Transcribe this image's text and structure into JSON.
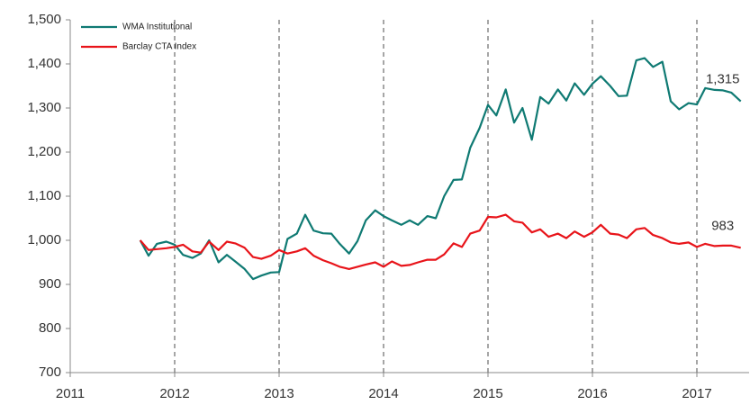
{
  "chart_data": {
    "type": "line",
    "x": [
      2011.67,
      2011.75,
      2011.83,
      2011.92,
      2012.0,
      2012.08,
      2012.17,
      2012.25,
      2012.33,
      2012.42,
      2012.5,
      2012.58,
      2012.67,
      2012.75,
      2012.83,
      2012.92,
      2013.0,
      2013.08,
      2013.17,
      2013.25,
      2013.33,
      2013.42,
      2013.5,
      2013.58,
      2013.67,
      2013.75,
      2013.83,
      2013.92,
      2014.0,
      2014.08,
      2014.17,
      2014.25,
      2014.33,
      2014.42,
      2014.5,
      2014.58,
      2014.67,
      2014.75,
      2014.83,
      2014.92,
      2015.0,
      2015.08,
      2015.17,
      2015.25,
      2015.33,
      2015.42,
      2015.5,
      2015.58,
      2015.67,
      2015.75,
      2015.83,
      2015.92,
      2016.0,
      2016.08,
      2016.17,
      2016.25,
      2016.33,
      2016.42,
      2016.5,
      2016.58,
      2016.67,
      2016.75,
      2016.83,
      2016.92,
      2017.0,
      2017.08,
      2017.17,
      2017.25,
      2017.33,
      2017.42
    ],
    "series": [
      {
        "name": "WMA Institutional",
        "color": "#0f7a73",
        "values": [
          1000,
          965,
          992,
          997,
          990,
          967,
          960,
          970,
          1000,
          950,
          967,
          952,
          935,
          912,
          920,
          927,
          928,
          1003,
          1015,
          1058,
          1022,
          1016,
          1015,
          992,
          970,
          998,
          1045,
          1068,
          1055,
          1045,
          1035,
          1045,
          1035,
          1055,
          1050,
          1100,
          1137,
          1138,
          1210,
          1255,
          1307,
          1283,
          1342,
          1267,
          1300,
          1228,
          1325,
          1310,
          1342,
          1317,
          1356,
          1330,
          1355,
          1372,
          1350,
          1327,
          1328,
          1408,
          1413,
          1393,
          1405,
          1315,
          1297,
          1311,
          1308,
          1345,
          1341,
          1340,
          1335,
          1315
        ]
      },
      {
        "name": "Barclay CTA Index",
        "color": "#e8141a",
        "values": [
          1000,
          978,
          980,
          982,
          985,
          990,
          975,
          972,
          997,
          978,
          997,
          993,
          983,
          962,
          958,
          965,
          978,
          970,
          975,
          982,
          965,
          955,
          948,
          940,
          935,
          940,
          945,
          950,
          940,
          952,
          942,
          944,
          950,
          956,
          956,
          968,
          993,
          985,
          1015,
          1022,
          1053,
          1052,
          1058,
          1043,
          1040,
          1018,
          1025,
          1008,
          1015,
          1005,
          1020,
          1008,
          1018,
          1035,
          1015,
          1013,
          1005,
          1025,
          1028,
          1012,
          1005,
          995,
          992,
          995,
          985,
          992,
          987,
          988,
          988,
          983
        ]
      }
    ],
    "annotations": [
      "1,315",
      "983"
    ],
    "xlim": [
      2011,
      2017.5
    ],
    "xticks": [
      2011,
      2012,
      2013,
      2014,
      2015,
      2016,
      2017
    ],
    "ylim": [
      700,
      1500
    ],
    "yticks": [
      700,
      800,
      900,
      {
        "value": 1000,
        "label": "1,000"
      },
      {
        "value": 1100,
        "label": "1,100"
      },
      {
        "value": 1200,
        "label": "1,200"
      },
      {
        "value": 1300,
        "label": "1,300"
      },
      {
        "value": 1400,
        "label": "1,400"
      },
      {
        "value": 1500,
        "label": "1,500"
      }
    ],
    "grid": true,
    "legend": "top-left"
  }
}
